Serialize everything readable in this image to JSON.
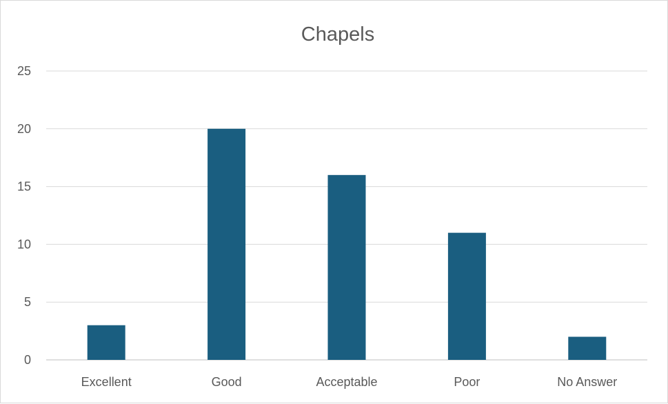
{
  "chart_data": {
    "type": "bar",
    "title": "Chapels",
    "categories": [
      "Excellent",
      "Good",
      "Acceptable",
      "Poor",
      "No Answer"
    ],
    "values": [
      3,
      20,
      16,
      11,
      2
    ],
    "ylim": [
      0,
      25
    ],
    "yticks": [
      0,
      5,
      10,
      15,
      20,
      25
    ],
    "xlabel": "",
    "ylabel": "",
    "grid": true,
    "legend": "none",
    "bar_color": "#1a5e80"
  }
}
